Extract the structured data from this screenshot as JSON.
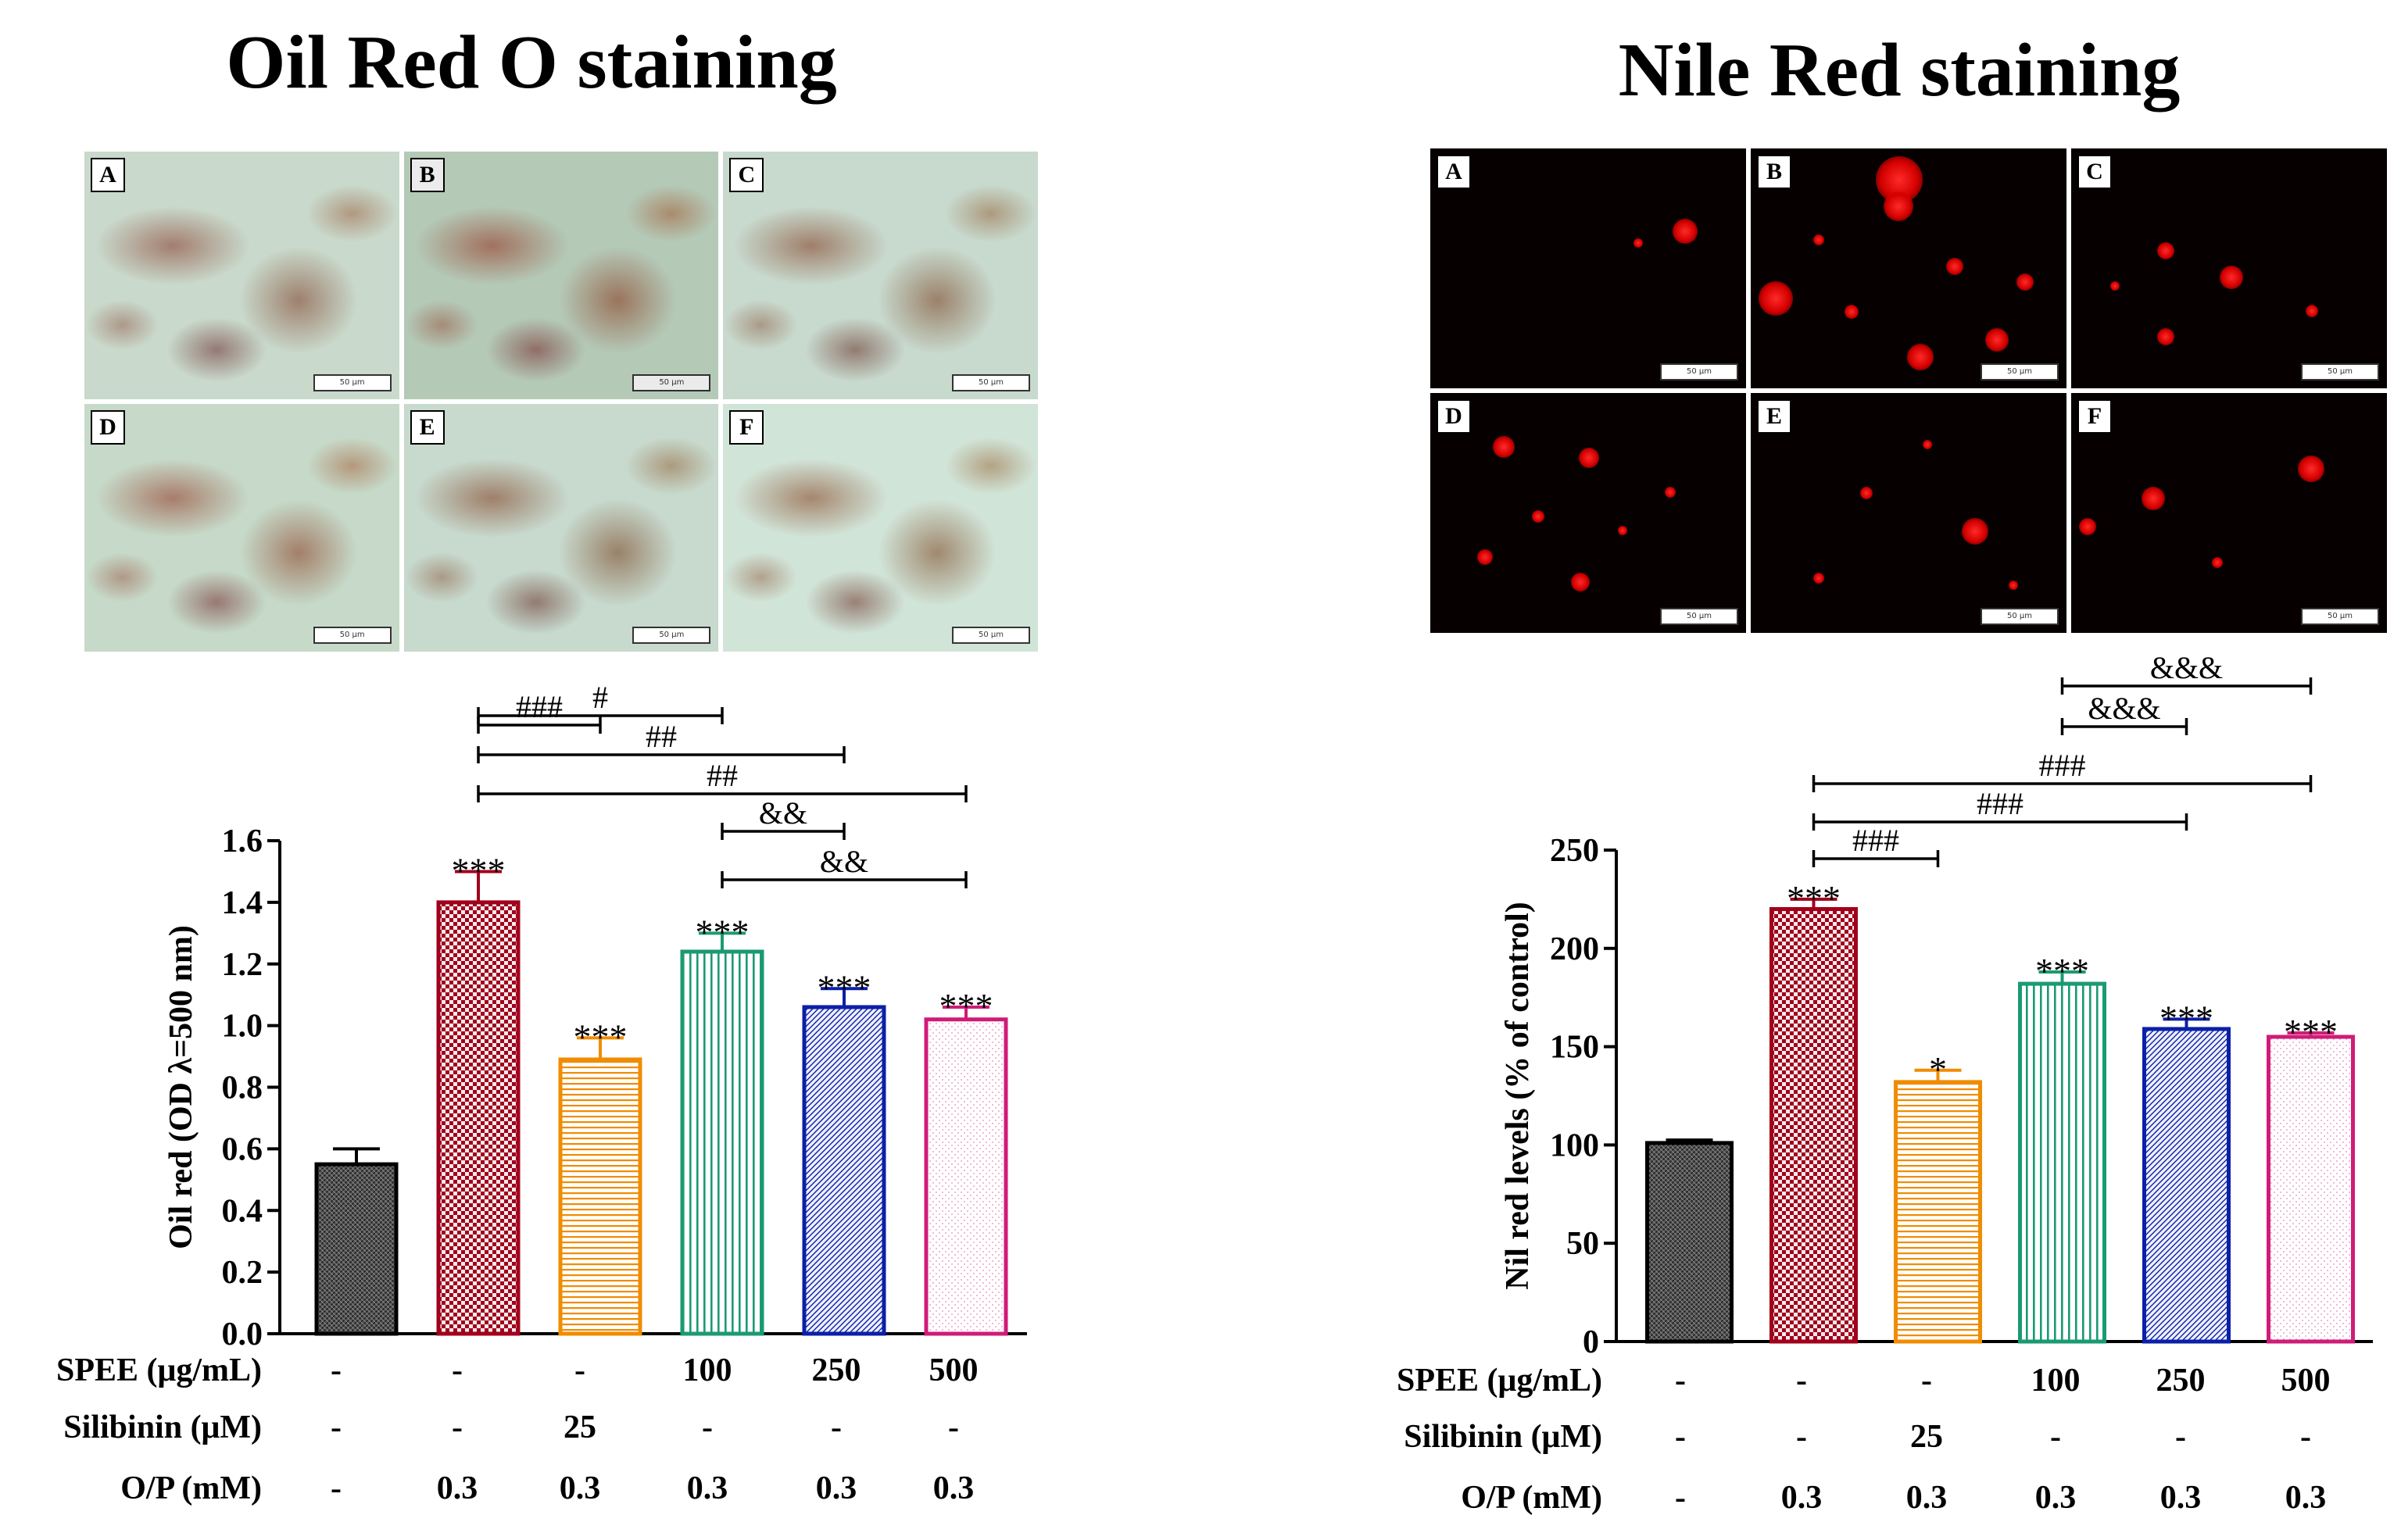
{
  "left": {
    "title": "Oil Red O staining",
    "panels": [
      {
        "label": "A",
        "scale": "50 μm"
      },
      {
        "label": "B",
        "scale": "50 μm"
      },
      {
        "label": "C",
        "scale": "50 μm"
      },
      {
        "label": "D",
        "scale": "50 μm"
      },
      {
        "label": "E",
        "scale": "50 μm"
      },
      {
        "label": "F",
        "scale": "50 μm"
      }
    ]
  },
  "right": {
    "title": "Nile Red staining",
    "panels": [
      {
        "label": "A",
        "scale": "50 μm"
      },
      {
        "label": "B",
        "scale": "50 μm"
      },
      {
        "label": "C",
        "scale": "50 μm"
      },
      {
        "label": "D",
        "scale": "50 μm"
      },
      {
        "label": "E",
        "scale": "50 μm"
      },
      {
        "label": "F",
        "scale": "50 μm"
      }
    ]
  },
  "colors": {
    "control": "#000000",
    "model": "#a0001c",
    "silibinin": "#f08c00",
    "spee100": "#1a9a72",
    "spee250": "#0b1fa8",
    "spee500": "#d01b78"
  },
  "chart_data": [
    {
      "type": "bar",
      "ylabel": "Oil red (OD λ=500 nm)",
      "ylim": [
        0,
        1.6
      ],
      "yticks": [
        "0.0",
        "0.2",
        "0.4",
        "0.6",
        "0.8",
        "1.0",
        "1.2",
        "1.4",
        "1.6"
      ],
      "values": [
        0.55,
        1.4,
        0.89,
        1.24,
        1.06,
        1.02
      ],
      "errors": [
        0.05,
        0.1,
        0.07,
        0.06,
        0.06,
        0.04
      ],
      "stars": [
        "",
        "***",
        "***",
        "***",
        "***",
        "***"
      ],
      "brackets": [
        {
          "from": 1,
          "to": 2,
          "label": "###"
        },
        {
          "from": 1,
          "to": 3,
          "label": "#"
        },
        {
          "from": 1,
          "to": 4,
          "label": "##"
        },
        {
          "from": 1,
          "to": 5,
          "label": "##"
        },
        {
          "from": 3,
          "to": 4,
          "label": "&&"
        },
        {
          "from": 3,
          "to": 5,
          "label": "&&"
        }
      ],
      "table": [
        {
          "label": "SPEE (μg/mL)",
          "values": [
            "-",
            "-",
            "-",
            "100",
            "250",
            "500"
          ]
        },
        {
          "label": "Silibinin (μM)",
          "values": [
            "-",
            "-",
            "25",
            "-",
            "-",
            "-"
          ]
        },
        {
          "label": "O/P (mM)",
          "values": [
            "-",
            "0.3",
            "0.3",
            "0.3",
            "0.3",
            "0.3"
          ]
        }
      ]
    },
    {
      "type": "bar",
      "ylabel": "Nil red levels (% of control)",
      "ylim": [
        0,
        250
      ],
      "yticks": [
        "0",
        "50",
        "100",
        "150",
        "200",
        "250"
      ],
      "values": [
        101,
        220,
        132,
        182,
        159,
        155
      ],
      "errors": [
        1.5,
        5,
        6,
        6,
        5,
        2
      ],
      "stars": [
        "",
        "***",
        "*",
        "***",
        "***",
        "***"
      ],
      "brackets": [
        {
          "from": 1,
          "to": 2,
          "label": "###"
        },
        {
          "from": 1,
          "to": 4,
          "label": "###"
        },
        {
          "from": 1,
          "to": 5,
          "label": "###"
        },
        {
          "from": 3,
          "to": 4,
          "label": "&&&"
        },
        {
          "from": 3,
          "to": 5,
          "label": "&&&"
        }
      ],
      "table": [
        {
          "label": "SPEE (μg/mL)",
          "values": [
            "-",
            "-",
            "-",
            "100",
            "250",
            "500"
          ]
        },
        {
          "label": "Silibinin (μM)",
          "values": [
            "-",
            "-",
            "25",
            "-",
            "-",
            "-"
          ]
        },
        {
          "label": "O/P (mM)",
          "values": [
            "-",
            "0.3",
            "0.3",
            "0.3",
            "0.3",
            "0.3"
          ]
        }
      ]
    }
  ]
}
